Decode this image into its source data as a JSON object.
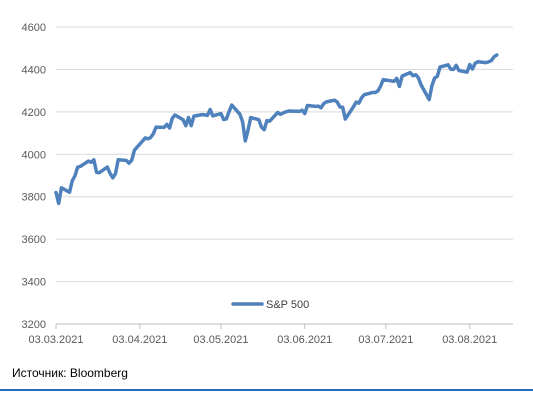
{
  "source_text": "Источник: Bloomberg",
  "chart_data": {
    "type": "line",
    "title": "",
    "xlabel": "",
    "ylabel": "",
    "ylim": [
      3200,
      4600
    ],
    "y_ticks": [
      3200,
      3400,
      3600,
      3800,
      4000,
      4200,
      4400,
      4600
    ],
    "x_tick_labels": [
      "03.03.2021",
      "03.04.2021",
      "03.05.2021",
      "03.06.2021",
      "03.07.2021",
      "03.08.2021"
    ],
    "x_tick_dates": [
      "2021-03-03",
      "2021-04-03",
      "2021-05-03",
      "2021-06-03",
      "2021-07-03",
      "2021-08-03"
    ],
    "xlim": [
      "2021-03-03",
      "2021-08-19"
    ],
    "grid": "horizontal",
    "legend_position": "bottom-center",
    "series_color": "#4f81bd",
    "series": [
      {
        "name": "S&P 500",
        "points": [
          [
            "2021-03-03",
            3820
          ],
          [
            "2021-03-04",
            3768
          ],
          [
            "2021-03-05",
            3842
          ],
          [
            "2021-03-08",
            3821
          ],
          [
            "2021-03-09",
            3875
          ],
          [
            "2021-03-10",
            3898
          ],
          [
            "2021-03-11",
            3939
          ],
          [
            "2021-03-12",
            3943
          ],
          [
            "2021-03-15",
            3968
          ],
          [
            "2021-03-16",
            3962
          ],
          [
            "2021-03-17",
            3974
          ],
          [
            "2021-03-18",
            3915
          ],
          [
            "2021-03-19",
            3913
          ],
          [
            "2021-03-22",
            3940
          ],
          [
            "2021-03-23",
            3910
          ],
          [
            "2021-03-24",
            3889
          ],
          [
            "2021-03-25",
            3909
          ],
          [
            "2021-03-26",
            3974
          ],
          [
            "2021-03-29",
            3971
          ],
          [
            "2021-03-30",
            3958
          ],
          [
            "2021-03-31",
            3972
          ],
          [
            "2021-04-01",
            4019
          ],
          [
            "2021-04-05",
            4077
          ],
          [
            "2021-04-06",
            4073
          ],
          [
            "2021-04-07",
            4079
          ],
          [
            "2021-04-08",
            4097
          ],
          [
            "2021-04-09",
            4128
          ],
          [
            "2021-04-12",
            4127
          ],
          [
            "2021-04-13",
            4141
          ],
          [
            "2021-04-14",
            4124
          ],
          [
            "2021-04-15",
            4170
          ],
          [
            "2021-04-16",
            4185
          ],
          [
            "2021-04-19",
            4163
          ],
          [
            "2021-04-20",
            4135
          ],
          [
            "2021-04-21",
            4173
          ],
          [
            "2021-04-22",
            4135
          ],
          [
            "2021-04-23",
            4180
          ],
          [
            "2021-04-26",
            4187
          ],
          [
            "2021-04-27",
            4186
          ],
          [
            "2021-04-28",
            4183
          ],
          [
            "2021-04-29",
            4211
          ],
          [
            "2021-04-30",
            4181
          ],
          [
            "2021-05-03",
            4192
          ],
          [
            "2021-05-04",
            4164
          ],
          [
            "2021-05-05",
            4167
          ],
          [
            "2021-05-06",
            4201
          ],
          [
            "2021-05-07",
            4232
          ],
          [
            "2021-05-10",
            4189
          ],
          [
            "2021-05-11",
            4153
          ],
          [
            "2021-05-12",
            4063
          ],
          [
            "2021-05-13",
            4113
          ],
          [
            "2021-05-14",
            4173
          ],
          [
            "2021-05-17",
            4163
          ],
          [
            "2021-05-18",
            4128
          ],
          [
            "2021-05-19",
            4116
          ],
          [
            "2021-05-20",
            4159
          ],
          [
            "2021-05-21",
            4156
          ],
          [
            "2021-05-24",
            4197
          ],
          [
            "2021-05-25",
            4188
          ],
          [
            "2021-05-26",
            4195
          ],
          [
            "2021-05-27",
            4200
          ],
          [
            "2021-05-28",
            4204
          ],
          [
            "2021-06-01",
            4202
          ],
          [
            "2021-06-02",
            4208
          ],
          [
            "2021-06-03",
            4192
          ],
          [
            "2021-06-04",
            4230
          ],
          [
            "2021-06-07",
            4226
          ],
          [
            "2021-06-08",
            4227
          ],
          [
            "2021-06-09",
            4219
          ],
          [
            "2021-06-10",
            4239
          ],
          [
            "2021-06-11",
            4247
          ],
          [
            "2021-06-14",
            4255
          ],
          [
            "2021-06-15",
            4246
          ],
          [
            "2021-06-16",
            4223
          ],
          [
            "2021-06-17",
            4222
          ],
          [
            "2021-06-18",
            4166
          ],
          [
            "2021-06-21",
            4224
          ],
          [
            "2021-06-22",
            4246
          ],
          [
            "2021-06-23",
            4241
          ],
          [
            "2021-06-24",
            4266
          ],
          [
            "2021-06-25",
            4281
          ],
          [
            "2021-06-28",
            4291
          ],
          [
            "2021-06-29",
            4291
          ],
          [
            "2021-06-30",
            4298
          ],
          [
            "2021-07-01",
            4320
          ],
          [
            "2021-07-02",
            4352
          ],
          [
            "2021-07-06",
            4344
          ],
          [
            "2021-07-07",
            4358
          ],
          [
            "2021-07-08",
            4320
          ],
          [
            "2021-07-09",
            4369
          ],
          [
            "2021-07-12",
            4385
          ],
          [
            "2021-07-13",
            4370
          ],
          [
            "2021-07-14",
            4375
          ],
          [
            "2021-07-15",
            4361
          ],
          [
            "2021-07-16",
            4327
          ],
          [
            "2021-07-19",
            4258
          ],
          [
            "2021-07-20",
            4323
          ],
          [
            "2021-07-21",
            4359
          ],
          [
            "2021-07-22",
            4367
          ],
          [
            "2021-07-23",
            4411
          ],
          [
            "2021-07-26",
            4422
          ],
          [
            "2021-07-27",
            4401
          ],
          [
            "2021-07-28",
            4400
          ],
          [
            "2021-07-29",
            4419
          ],
          [
            "2021-07-30",
            4395
          ],
          [
            "2021-08-02",
            4387
          ],
          [
            "2021-08-03",
            4423
          ],
          [
            "2021-08-04",
            4402
          ],
          [
            "2021-08-05",
            4429
          ],
          [
            "2021-08-06",
            4436
          ],
          [
            "2021-08-09",
            4432
          ],
          [
            "2021-08-10",
            4436
          ],
          [
            "2021-08-11",
            4442
          ],
          [
            "2021-08-12",
            4460
          ],
          [
            "2021-08-13",
            4468
          ]
        ]
      }
    ]
  }
}
